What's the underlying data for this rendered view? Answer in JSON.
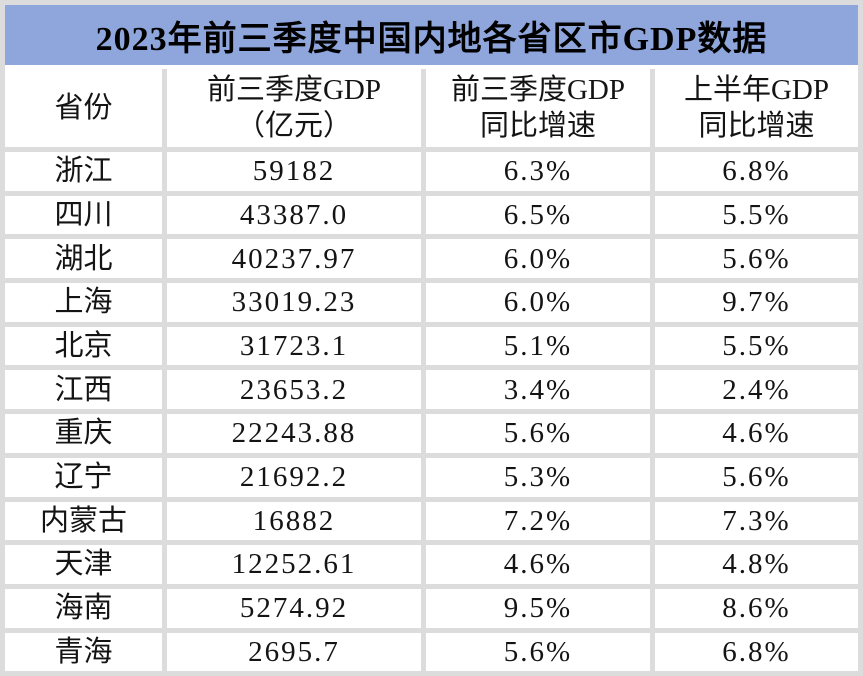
{
  "colors": {
    "title_bg": "#8EA6DB",
    "grid_line": "#DCDCDC",
    "cell_bg": "#FFFFFF",
    "text": "#141414",
    "title_text": "#000000"
  },
  "header_display": {
    "c0": "省份",
    "c1": "前三季度GDP\n（亿元）",
    "c2": "前三季度GDP\n同比增速",
    "c3": "上半年GDP\n同比增速"
  },
  "chart_data": {
    "type": "table",
    "title": "2023年前三季度中国内地各省区市GDP数据",
    "columns": [
      "省份",
      "前三季度GDP（亿元）",
      "前三季度GDP同比增速",
      "上半年GDP同比增速"
    ],
    "rows": [
      [
        "浙江",
        "59182",
        "6.3%",
        "6.8%"
      ],
      [
        "四川",
        "43387.0",
        "6.5%",
        "5.5%"
      ],
      [
        "湖北",
        "40237.97",
        "6.0%",
        "5.6%"
      ],
      [
        "上海",
        "33019.23",
        "6.0%",
        "9.7%"
      ],
      [
        "北京",
        "31723.1",
        "5.1%",
        "5.5%"
      ],
      [
        "江西",
        "23653.2",
        "3.4%",
        "2.4%"
      ],
      [
        "重庆",
        "22243.88",
        "5.6%",
        "4.6%"
      ],
      [
        "辽宁",
        "21692.2",
        "5.3%",
        "5.6%"
      ],
      [
        "内蒙古",
        "16882",
        "7.2%",
        "7.3%"
      ],
      [
        "天津",
        "12252.61",
        "4.6%",
        "4.8%"
      ],
      [
        "海南",
        "5274.92",
        "9.5%",
        "8.6%"
      ],
      [
        "青海",
        "2695.7",
        "5.6%",
        "6.8%"
      ]
    ]
  }
}
